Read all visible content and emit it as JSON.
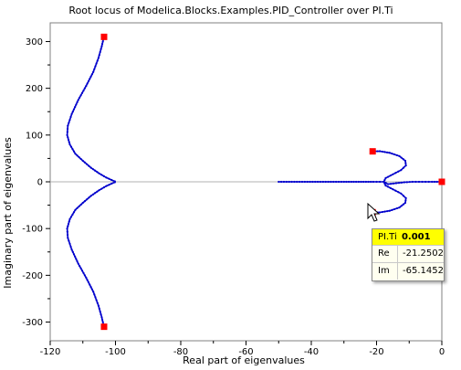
{
  "chart_data": {
    "type": "scatter",
    "title": "Root locus of Modelica.Blocks.Examples.PID_Controller over PI.Ti",
    "xlabel": "Real part of eigenvalues",
    "ylabel": "Imaginary part of eigenvalues",
    "xlim": [
      -120,
      0
    ],
    "ylim": [
      -340,
      340
    ],
    "xticks": [
      -120,
      -100,
      -80,
      -60,
      -40,
      -20,
      0
    ],
    "yticks": [
      -300,
      -200,
      -100,
      0,
      100,
      200,
      300
    ],
    "grid": false,
    "series_color": "#0000cc",
    "endpoint_color": "#ff0000",
    "branches": [
      {
        "x": [
          -103.5,
          -103.7,
          -104.2,
          -105.2,
          -106.8,
          -109.0,
          -111.4,
          -113.4,
          -114.6,
          -114.8,
          -114.0,
          -112.3,
          -110.0,
          -107.5,
          -105.0,
          -102.8,
          -101.2,
          -100.2,
          -100.0
        ],
        "y": [
          310,
          305,
          290,
          265,
          235,
          205,
          175,
          145,
          120,
          100,
          80,
          60,
          45,
          30,
          18,
          9,
          4,
          1,
          0
        ]
      },
      {
        "x": [
          -103.5,
          -103.7,
          -104.2,
          -105.2,
          -106.8,
          -109.0,
          -111.4,
          -113.4,
          -114.6,
          -114.8,
          -114.0,
          -112.3,
          -110.0,
          -107.5,
          -105.0,
          -102.8,
          -101.2,
          -100.2,
          -100.0
        ],
        "y": [
          -310,
          -305,
          -290,
          -265,
          -235,
          -205,
          -175,
          -145,
          -120,
          -100,
          -80,
          -60,
          -45,
          -30,
          -18,
          -9,
          -4,
          -1,
          0
        ]
      },
      {
        "x": [
          -21.2,
          -19.0,
          -16.0,
          -13.0,
          -11.2,
          -11.0,
          -12.5,
          -15.0,
          -17.2,
          -17.8,
          -16.5,
          -14.0,
          -11.5,
          -9.0,
          -7.0,
          -5.0,
          -3.0,
          -1.5,
          0.0
        ],
        "y": [
          65.1,
          65.5,
          62.0,
          55.0,
          45.0,
          35.0,
          25.0,
          16.0,
          8.0,
          0.0,
          -5.0,
          -3.0,
          -1.0,
          0,
          0,
          0,
          0,
          0,
          0
        ]
      },
      {
        "x": [
          -21.2,
          -19.0,
          -16.0,
          -13.0,
          -11.2,
          -11.0,
          -12.5,
          -15.0,
          -17.2,
          -17.8
        ],
        "y": [
          -65.1,
          -65.5,
          -62.0,
          -55.0,
          -45.0,
          -35.0,
          -25.0,
          -16.0,
          -8.0,
          0.0
        ]
      },
      {
        "x": [
          -50,
          -46,
          -42,
          -38,
          -34,
          -30,
          -27,
          -24,
          -21,
          -19,
          -17.8
        ],
        "y": [
          0,
          0,
          0,
          0,
          0,
          0,
          0,
          0,
          0,
          0,
          0
        ]
      }
    ],
    "endpoints": [
      {
        "x": -103.5,
        "y": 310
      },
      {
        "x": -103.5,
        "y": -310
      },
      {
        "x": -21.2,
        "y": 65.1
      },
      {
        "x": -21.2,
        "y": -65.1
      },
      {
        "x": 0,
        "y": 0
      }
    ]
  },
  "tooltip": {
    "param_label": "PI.Ti",
    "param_value": "0.001",
    "re_label": "Re",
    "re_value": "-21.2502",
    "im_label": "Im",
    "im_value": "-65.1452"
  }
}
